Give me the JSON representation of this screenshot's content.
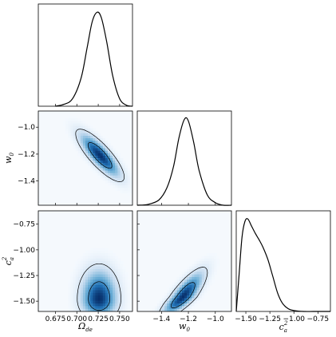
{
  "chart_data": {
    "type": "corner",
    "parameters": [
      {
        "key": "omega",
        "label": "Ω",
        "sub": "de",
        "sup": "",
        "range": [
          0.655,
          0.765
        ],
        "ticks": [
          0.675,
          0.7,
          0.725,
          0.75
        ],
        "tick_labels": [
          "0.675",
          "0.700",
          "0.725",
          "0.750"
        ]
      },
      {
        "key": "w0",
        "label": "w",
        "sub": "0",
        "sup": "",
        "range": [
          -1.58,
          -0.88
        ],
        "ticks": [
          -1.4,
          -1.2,
          -1.0
        ],
        "tick_labels": [
          "−1.4",
          "−1.2",
          "−1.0"
        ]
      },
      {
        "key": "ca2",
        "label": "c",
        "sub": "a",
        "sup": "2",
        "range": [
          -1.6,
          -0.62
        ],
        "ticks": [
          -1.5,
          -1.25,
          -1.0,
          -0.75
        ],
        "tick_labels": [
          "−1.50",
          "−1.25",
          "−1.00",
          "−0.75"
        ]
      }
    ],
    "marginals": [
      {
        "param": "omega",
        "x": [
          0.675,
          0.685,
          0.695,
          0.705,
          0.712,
          0.718,
          0.724,
          0.729,
          0.735,
          0.742,
          0.75,
          0.758,
          0.765
        ],
        "y": [
          0.0,
          0.02,
          0.08,
          0.3,
          0.62,
          0.9,
          1.0,
          0.93,
          0.68,
          0.32,
          0.08,
          0.01,
          0.0
        ]
      },
      {
        "param": "w0",
        "x": [
          -1.58,
          -1.5,
          -1.42,
          -1.36,
          -1.31,
          -1.27,
          -1.23,
          -1.2,
          -1.16,
          -1.12,
          -1.06,
          -1.0,
          -0.94,
          -0.88
        ],
        "y": [
          0.0,
          0.01,
          0.06,
          0.2,
          0.45,
          0.78,
          0.99,
          0.97,
          0.72,
          0.4,
          0.12,
          0.03,
          0.0,
          0.0
        ]
      },
      {
        "param": "ca2",
        "x": [
          -1.6,
          -1.57,
          -1.54,
          -1.51,
          -1.48,
          -1.44,
          -1.4,
          -1.36,
          -1.32,
          -1.27,
          -1.22,
          -1.17,
          -1.12,
          -1.06,
          -1.0,
          -0.9,
          -0.8,
          -0.7,
          -0.62
        ],
        "y": [
          0.0,
          0.4,
          0.8,
          0.97,
          1.0,
          0.92,
          0.84,
          0.77,
          0.69,
          0.56,
          0.38,
          0.2,
          0.09,
          0.03,
          0.01,
          0.0,
          0.0,
          0.0,
          0.0
        ]
      }
    ],
    "joint": [
      {
        "x": "omega",
        "y": "w0",
        "center": [
          0.727,
          -1.21
        ],
        "sigma": [
          0.0138,
          0.095
        ],
        "rho": -0.82,
        "fill_color": "#08519c"
      },
      {
        "x": "omega",
        "y": "ca2",
        "center": [
          0.726,
          -1.48
        ],
        "sigma": [
          0.0124,
          0.108
        ],
        "rho": 0.0,
        "skew_y": 0.55,
        "fill_color": "#08519c"
      },
      {
        "x": "w0",
        "y": "ca2",
        "center": [
          -1.24,
          -1.46
        ],
        "sigma": [
          0.088,
          0.105
        ],
        "rho": 0.82,
        "skew_y": 0.35,
        "fill_color": "#08519c"
      }
    ]
  }
}
